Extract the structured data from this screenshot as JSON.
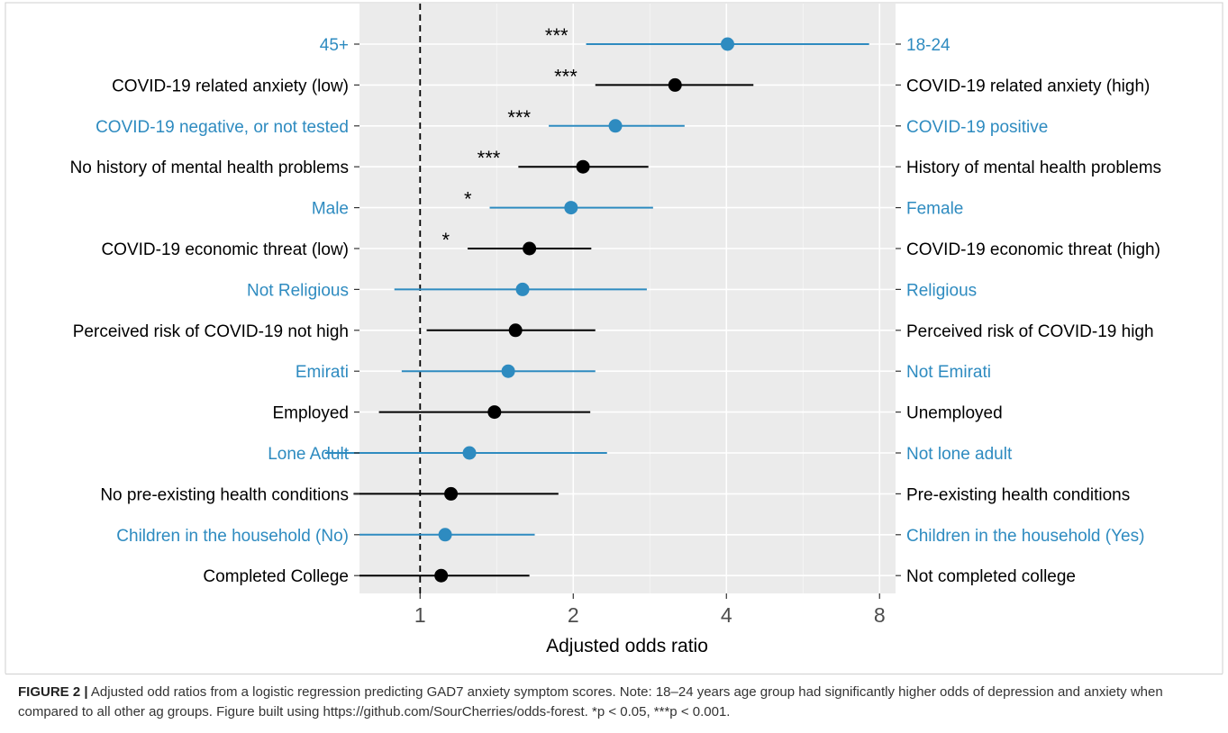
{
  "chart_data": {
    "type": "forest",
    "xlabel": "Adjusted odds ratio",
    "xscale": "log2",
    "xlim": [
      0.76,
      8.6
    ],
    "xticks": [
      1,
      2,
      4,
      8
    ],
    "xtick_labels": [
      "1",
      "2",
      "4",
      "8"
    ],
    "reference_line": 1,
    "grid": true,
    "colors": {
      "highlight": "#2E8BC0",
      "default": "#000000"
    },
    "rows": [
      {
        "left_label": "45+",
        "right_label": "18-24",
        "or": 4.02,
        "lo": 2.12,
        "hi": 7.63,
        "sig": "***",
        "color": "#2E8BC0"
      },
      {
        "left_label": "COVID-19 related anxiety (low)",
        "right_label": "COVID-19 related anxiety (high)",
        "or": 3.17,
        "lo": 2.21,
        "hi": 4.52,
        "sig": "***",
        "color": "#000000"
      },
      {
        "left_label": "COVID-19 negative, or not tested",
        "right_label": "COVID-19 positive",
        "or": 2.42,
        "lo": 1.79,
        "hi": 3.31,
        "sig": "***",
        "color": "#2E8BC0"
      },
      {
        "left_label": "No history of mental health problems",
        "right_label": "History of mental health problems",
        "or": 2.09,
        "lo": 1.56,
        "hi": 2.81,
        "sig": "***",
        "color": "#000000"
      },
      {
        "left_label": "Male",
        "right_label": "Female",
        "or": 1.98,
        "lo": 1.37,
        "hi": 2.87,
        "sig": "*",
        "color": "#2E8BC0"
      },
      {
        "left_label": "COVID-19 economic threat (low)",
        "right_label": "COVID-19 economic threat (high)",
        "or": 1.64,
        "lo": 1.24,
        "hi": 2.17,
        "sig": "*",
        "color": "#000000"
      },
      {
        "left_label": "Not Religious",
        "right_label": "Religious",
        "or": 1.59,
        "lo": 0.89,
        "hi": 2.79,
        "sig": "",
        "color": "#2E8BC0"
      },
      {
        "left_label": "Perceived risk of COVID-19 not high",
        "right_label": "Perceived risk of COVID-19 high",
        "or": 1.54,
        "lo": 1.03,
        "hi": 2.21,
        "sig": "",
        "color": "#000000"
      },
      {
        "left_label": "Emirati",
        "right_label": "Not Emirati",
        "or": 1.49,
        "lo": 0.92,
        "hi": 2.21,
        "sig": "",
        "color": "#2E8BC0"
      },
      {
        "left_label": "Employed",
        "right_label": "Unemployed",
        "or": 1.4,
        "lo": 0.83,
        "hi": 2.16,
        "sig": "",
        "color": "#000000"
      },
      {
        "left_label": "Lone Adult",
        "right_label": "Not lone adult",
        "or": 1.25,
        "lo": 0.65,
        "hi": 2.33,
        "sig": "",
        "color": "#2E8BC0"
      },
      {
        "left_label": "No pre-existing health conditions",
        "right_label": "Pre-existing health conditions",
        "or": 1.15,
        "lo": 0.74,
        "hi": 1.87,
        "sig": "",
        "color": "#000000"
      },
      {
        "left_label": "Children in the household (No)",
        "right_label": "Children in the household (Yes)",
        "or": 1.12,
        "lo": 0.76,
        "hi": 1.68,
        "sig": "",
        "color": "#2E8BC0"
      },
      {
        "left_label": "Completed College",
        "right_label": "Not completed college",
        "or": 1.1,
        "lo": 0.76,
        "hi": 1.64,
        "sig": "",
        "color": "#000000"
      }
    ]
  },
  "caption": {
    "label": "FIGURE 2 |",
    "text": "Adjusted odd ratios from a logistic regression predicting GAD7 anxiety symptom scores. Note: 18–24 years age group had significantly higher odds of depression and anxiety when compared to all other ag groups. Figure built using https://github.com/SourCherries/odds-forest. *p < 0.05, ***p < 0.001."
  }
}
